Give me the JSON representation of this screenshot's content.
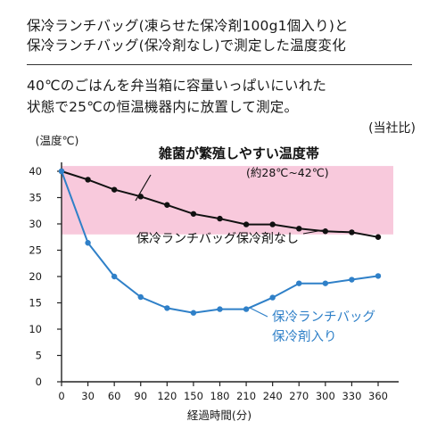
{
  "header": {
    "title_line1": "保冷ランチバッグ(凍らせた保冷剤100g1個入り)と",
    "title_line2": "保冷ランチバッグ(保冷剤なし)で測定した温度変化",
    "desc_line1": "40℃のごはんを弁当箱に容量いっぱいにいれた",
    "desc_line2": "状態で25℃の恒温機器内に放置して測定。",
    "source": "(当社比)"
  },
  "chart_data": {
    "type": "line",
    "xlabel": "経過時間(分)",
    "ylabel": "(温度℃)",
    "x": [
      0,
      30,
      60,
      90,
      120,
      150,
      180,
      210,
      240,
      270,
      300,
      330,
      360
    ],
    "xlim": [
      0,
      375
    ],
    "ylim": [
      0,
      43
    ],
    "yticks": [
      0,
      5,
      10,
      15,
      20,
      25,
      30,
      35,
      40
    ],
    "grid": false,
    "band": {
      "from": 28,
      "to": 41,
      "label": "雑菌が繁殖しやすい温度帯",
      "sublabel": "(約28℃~42℃)",
      "color": "#f8c9dc"
    },
    "series": [
      {
        "name": "保冷ランチバッグ保冷剤なし",
        "color": "#111111",
        "values": [
          40,
          38.4,
          36.5,
          35.2,
          33.6,
          31.9,
          31.0,
          29.9,
          29.9,
          29.1,
          28.6,
          28.4,
          27.5
        ]
      },
      {
        "name_line1": "保冷ランチバッグ",
        "name_line2": "保冷剤入り",
        "color": "#2f80c8",
        "values": [
          40,
          26.4,
          20.0,
          16.1,
          14.0,
          13.1,
          13.8,
          13.8,
          16.0,
          18.7,
          18.7,
          19.4,
          20.1
        ]
      }
    ]
  }
}
